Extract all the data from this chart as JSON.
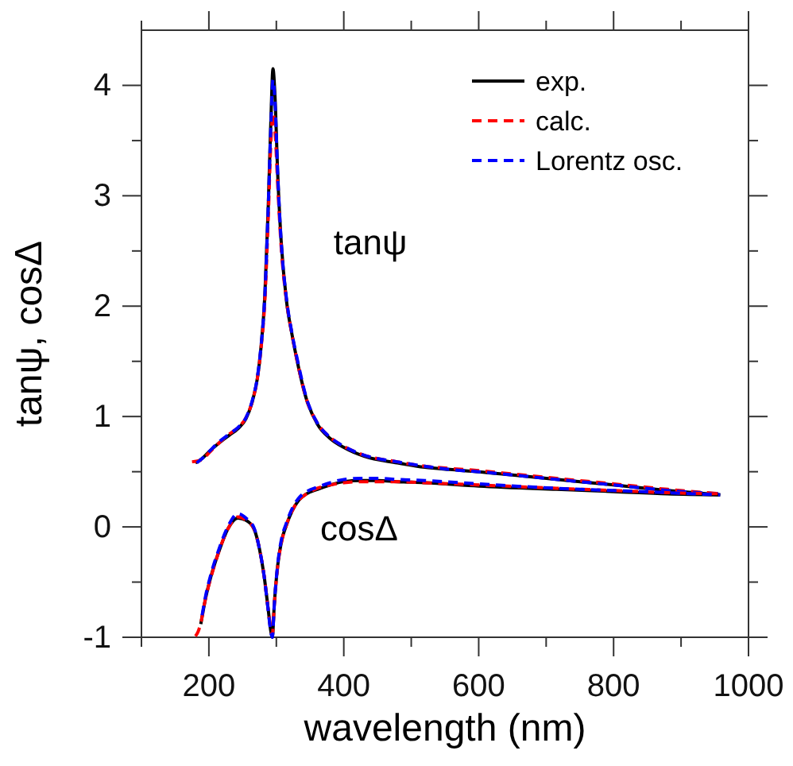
{
  "chart_data": {
    "type": "line",
    "xlabel": "wavelength (nm)",
    "ylabel": "tanψ, cosΔ",
    "xlim": [
      100,
      1000
    ],
    "ylim": [
      -1,
      4.5
    ],
    "xticks": [
      {
        "value": 100,
        "label": null
      },
      200,
      {
        "value": 300,
        "label": null
      },
      400,
      {
        "value": 500,
        "label": null
      },
      600,
      {
        "value": 700,
        "label": null
      },
      800,
      {
        "value": 900,
        "label": null
      },
      1000
    ],
    "yticks": [
      -1,
      {
        "value": -0.5,
        "label": null
      },
      0,
      {
        "value": 0.5,
        "label": null
      },
      1,
      {
        "value": 1.5,
        "label": null
      },
      2,
      {
        "value": 2.5,
        "label": null
      },
      3,
      {
        "value": 3.5,
        "label": null
      },
      4
    ],
    "legend": "top right",
    "grid": false,
    "annotations": [
      "tanψ",
      "cosΔ"
    ],
    "series": [
      {
        "name": "exp.",
        "color": "#000000",
        "line_style": "solid",
        "x": [
          180,
          190,
          200,
          215,
          230,
          243,
          255,
          265,
          272,
          277,
          283,
          288,
          292,
          295,
          298,
          302,
          307,
          315,
          323,
          331,
          345,
          361,
          380,
          400,
          430,
          479,
          520,
          557,
          600,
          650,
          715,
          800,
          880,
          958
        ],
        "values": [
          0.58,
          0.62,
          0.68,
          0.76,
          0.83,
          0.89,
          0.98,
          1.15,
          1.35,
          1.61,
          2.1,
          2.9,
          3.7,
          4.15,
          3.9,
          3.2,
          2.6,
          2.05,
          1.75,
          1.5,
          1.15,
          0.93,
          0.8,
          0.72,
          0.64,
          0.58,
          0.54,
          0.52,
          0.5,
          0.47,
          0.43,
          0.38,
          0.33,
          0.29
        ]
      },
      {
        "name": "calc.",
        "color": "#ff0000",
        "line_style": "dashed",
        "x": [
          175,
          190,
          200,
          215,
          230,
          243,
          255,
          265,
          272,
          277,
          283,
          288,
          292,
          295,
          298,
          302,
          307,
          315,
          323,
          331,
          345,
          361,
          380,
          400,
          430,
          479,
          520,
          557,
          600,
          650,
          715,
          800,
          880,
          958
        ],
        "values": [
          0.59,
          0.61,
          0.67,
          0.76,
          0.84,
          0.9,
          0.99,
          1.15,
          1.35,
          1.6,
          2.05,
          2.8,
          3.5,
          3.75,
          3.6,
          3.1,
          2.55,
          2.05,
          1.75,
          1.5,
          1.15,
          0.94,
          0.81,
          0.73,
          0.65,
          0.59,
          0.55,
          0.53,
          0.51,
          0.48,
          0.44,
          0.39,
          0.34,
          0.3
        ]
      },
      {
        "name": "Lorentz osc.",
        "color": "#0000ff",
        "line_style": "dashed",
        "x": [
          182,
          190,
          200,
          215,
          230,
          243,
          255,
          265,
          272,
          277,
          283,
          288,
          292,
          295,
          298,
          302,
          307,
          315,
          323,
          331,
          345,
          361,
          380,
          400,
          430,
          479,
          520,
          557,
          600,
          650,
          715,
          800,
          880,
          958
        ],
        "values": [
          0.58,
          0.62,
          0.68,
          0.77,
          0.84,
          0.9,
          0.99,
          1.16,
          1.36,
          1.62,
          2.1,
          2.9,
          3.65,
          4.05,
          3.85,
          3.2,
          2.6,
          2.07,
          1.76,
          1.52,
          1.16,
          0.94,
          0.81,
          0.73,
          0.65,
          0.59,
          0.55,
          0.52,
          0.5,
          0.47,
          0.43,
          0.38,
          0.33,
          0.3
        ]
      },
      {
        "color": "#000000",
        "line_style": "solid",
        "x": [
          188,
          195,
          203,
          215,
          228,
          243,
          255,
          267,
          275,
          282,
          288,
          292,
          294,
          297,
          302,
          308,
          314,
          323,
          333,
          345,
          361,
          380,
          400,
          424,
          450,
          479,
          520,
          600,
          715,
          800,
          880,
          958
        ],
        "values": [
          -0.88,
          -0.65,
          -0.45,
          -0.22,
          -0.02,
          0.08,
          0.06,
          -0.02,
          -0.2,
          -0.45,
          -0.75,
          -0.95,
          -1.0,
          -0.7,
          -0.35,
          -0.12,
          0.0,
          0.14,
          0.24,
          0.3,
          0.34,
          0.38,
          0.41,
          0.42,
          0.42,
          0.41,
          0.4,
          0.37,
          0.34,
          0.32,
          0.3,
          0.29
        ]
      },
      {
        "color": "#ff0000",
        "line_style": "dashed",
        "x": [
          180,
          184,
          188,
          195,
          203,
          215,
          228,
          243,
          255,
          267,
          275,
          282,
          288,
          292,
          294,
          297,
          302,
          308,
          314,
          323,
          333,
          345,
          361,
          380,
          400,
          424,
          450,
          479,
          520,
          600,
          715,
          800,
          880,
          958
        ],
        "values": [
          -0.99,
          -0.95,
          -0.87,
          -0.65,
          -0.46,
          -0.22,
          -0.02,
          0.09,
          0.06,
          -0.02,
          -0.2,
          -0.45,
          -0.75,
          -0.93,
          -0.98,
          -0.7,
          -0.36,
          -0.13,
          0.0,
          0.14,
          0.24,
          0.3,
          0.35,
          0.38,
          0.4,
          0.41,
          0.41,
          0.41,
          0.4,
          0.38,
          0.35,
          0.33,
          0.31,
          0.3
        ]
      },
      {
        "color": "#0000ff",
        "line_style": "dashed",
        "x": [
          190,
          195,
          203,
          215,
          228,
          243,
          255,
          267,
          275,
          282,
          288,
          292,
          294,
          297,
          302,
          308,
          314,
          323,
          333,
          345,
          361,
          380,
          400,
          424,
          450,
          479,
          520,
          600,
          715,
          800,
          880,
          958
        ],
        "values": [
          -0.8,
          -0.63,
          -0.43,
          -0.2,
          0.0,
          0.12,
          0.08,
          -0.01,
          -0.2,
          -0.45,
          -0.76,
          -0.96,
          -1.0,
          -0.7,
          -0.34,
          -0.1,
          0.02,
          0.16,
          0.26,
          0.32,
          0.36,
          0.4,
          0.43,
          0.44,
          0.44,
          0.43,
          0.42,
          0.39,
          0.35,
          0.33,
          0.31,
          0.29
        ]
      }
    ]
  }
}
